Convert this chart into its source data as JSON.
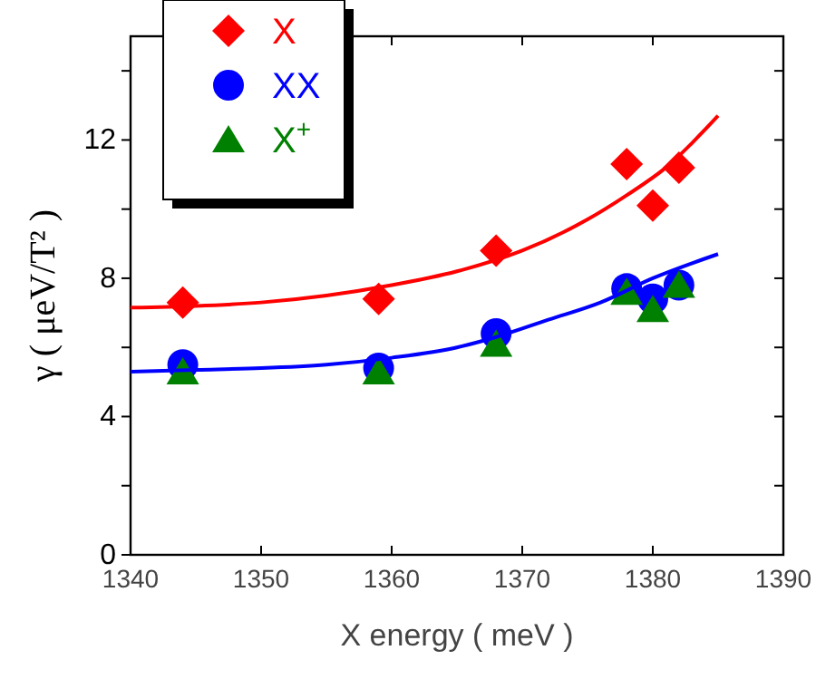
{
  "chart_data": {
    "type": "scatter",
    "xlabel": "X energy ( meV )",
    "ylabel": "γ ( μeV/T² )",
    "xlim": [
      1340,
      1390
    ],
    "xticks": [
      1340,
      1350,
      1360,
      1370,
      1380,
      1390
    ],
    "ylim": [
      0,
      15
    ],
    "yticks": [
      0,
      {
        "value": 2,
        "label": null
      },
      4,
      {
        "value": 6,
        "label": null
      },
      8,
      {
        "value": 10,
        "label": null
      },
      12,
      {
        "value": 14,
        "label": null
      }
    ],
    "legend": "top left",
    "grid": false,
    "series": [
      {
        "name": "X",
        "color": "#ff0000",
        "marker": "diamond",
        "x": [
          1344,
          1359,
          1368,
          1378,
          1380,
          1382
        ],
        "values": [
          7.3,
          7.4,
          8.8,
          11.3,
          10.1,
          11.2
        ]
      },
      {
        "name": "XX",
        "color": "#0000ff",
        "marker": "circle",
        "x": [
          1344,
          1359,
          1368,
          1378,
          1380,
          1382
        ],
        "values": [
          5.5,
          5.4,
          6.4,
          7.7,
          7.4,
          7.8
        ]
      },
      {
        "name": "X$^{+}$",
        "color": "#008000",
        "marker": "triangle",
        "x": [
          1344,
          1359,
          1368,
          1378,
          1380,
          1382
        ],
        "values": [
          5.3,
          5.3,
          6.1,
          7.6,
          7.1,
          7.8
        ]
      },
      {
        "type": "line",
        "color": "#ff0000",
        "marker": "none",
        "line_style": "solid",
        "x": [
          1340,
          1345,
          1350,
          1355,
          1360,
          1365,
          1370,
          1375,
          1378,
          1381,
          1385
        ],
        "values": [
          7.15,
          7.2,
          7.3,
          7.5,
          7.8,
          8.2,
          8.8,
          9.7,
          10.4,
          11.2,
          12.7
        ]
      },
      {
        "type": "line",
        "color": "#0000ff",
        "marker": "none",
        "line_style": "solid",
        "x": [
          1340,
          1345,
          1350,
          1355,
          1360,
          1365,
          1368,
          1372,
          1376,
          1380,
          1385
        ],
        "values": [
          5.3,
          5.35,
          5.4,
          5.5,
          5.7,
          6.0,
          6.3,
          6.8,
          7.3,
          8.0,
          8.7
        ]
      }
    ]
  }
}
